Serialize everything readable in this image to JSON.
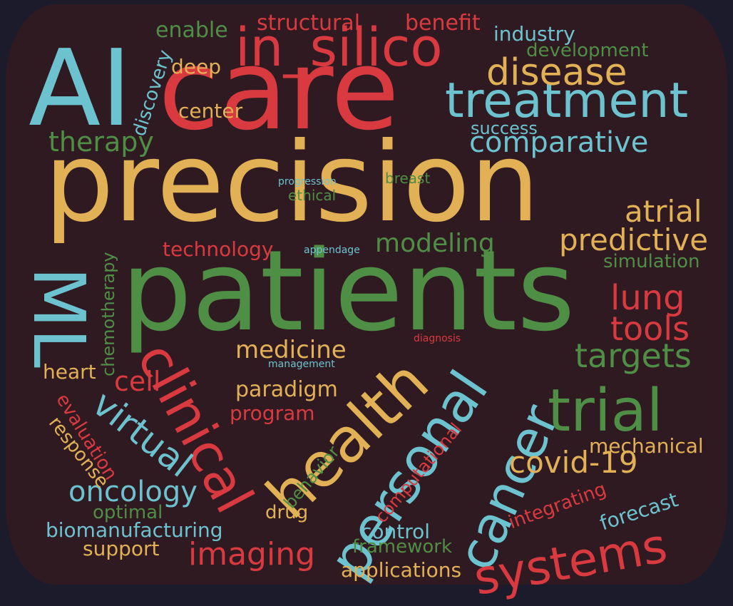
{
  "colors": {
    "background": "#1c1b2b",
    "cloud_fill": "#301a22",
    "red": "#d93a3f",
    "yellow": "#e2b155",
    "blue": "#6cc3cf",
    "green": "#4e8e45"
  },
  "words": {
    "ai": "AI",
    "care": "care",
    "in_silico": "in_silico",
    "precision": "precision",
    "patients": "patients",
    "treatment": "treatment",
    "disease": "disease",
    "comparative": "comparative",
    "success": "success",
    "ml": "ML",
    "clinical": "clinical",
    "health": "health",
    "personal": "personal",
    "cancer": "cancer",
    "trial": "trial",
    "systems": "systems",
    "virtual": "virtual",
    "oncology": "oncology",
    "imaging": "imaging",
    "structural": "structural",
    "benefit": "benefit",
    "industry": "industry",
    "development": "development",
    "enable": "enable",
    "deep": "deep",
    "discovery": "discovery",
    "center": "center",
    "therapy": "therapy",
    "progression": "progression",
    "ethical": "ethical",
    "breast": "breast",
    "atrial": "atrial",
    "predictive": "predictive",
    "simulation": "simulation",
    "lung": "lung",
    "tools": "tools",
    "targets": "targets",
    "technology": "technology",
    "appendage": "appendage",
    "modeling": "modeling",
    "chemotherapy": "chemotherapy",
    "medicine": "medicine",
    "diagnosis": "diagnosis",
    "management": "management",
    "heart": "heart",
    "cell": "cell",
    "paradigm": "paradigm",
    "program": "program",
    "evaluation": "evaluation",
    "response": "response",
    "behavior": "behavior",
    "computational": "computational",
    "mechanical": "mechanical",
    "covid19": "covid-19",
    "integrating": "integrating",
    "forecast": "forecast",
    "optimal": "optimal",
    "drug": "drug",
    "biomanufacturing": "biomanufacturing",
    "control": "control",
    "support": "support",
    "framework": "framework",
    "applications": "applications"
  }
}
